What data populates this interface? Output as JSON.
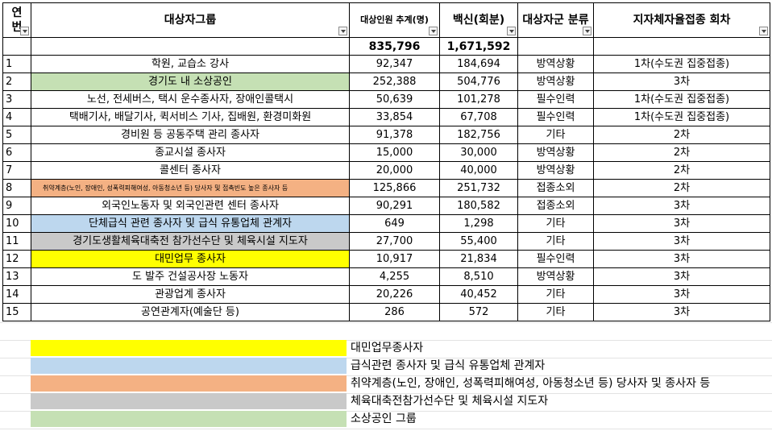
{
  "colors": {
    "yellow": "#ffff00",
    "light_blue": "#bdd7ee",
    "orange": "#f4b183",
    "gray": "#c9c9c9",
    "light_green": "#c5e0b4"
  },
  "header": {
    "no": "연번",
    "group": "대상자그룹",
    "est": "대상인원 추계(명)",
    "vaccine": "백신(회분)",
    "category": "대상자군 분류",
    "round": "지자체자율접종 회차"
  },
  "totals": {
    "est": "835,796",
    "vaccine": "1,671,592"
  },
  "rows": [
    {
      "no": "1",
      "group": "학원, 교습소 강사",
      "est": "92,347",
      "vaccine": "184,694",
      "category": "방역상황",
      "round": "1차(수도권 집중접종)",
      "color": ""
    },
    {
      "no": "2",
      "group": "경기도 내 소상공인",
      "est": "252,388",
      "vaccine": "504,776",
      "category": "방역상황",
      "round": "3차",
      "color": "light_green"
    },
    {
      "no": "3",
      "group": "노선, 전세버스, 택시 운수종사자, 장애인콜택시",
      "est": "50,639",
      "vaccine": "101,278",
      "category": "필수인력",
      "round": "1차(수도권 집중접종)",
      "color": ""
    },
    {
      "no": "4",
      "group": "택배기사, 배달기사, 퀵서비스 기사, 집배원, 환경미화원",
      "est": "33,854",
      "vaccine": "67,708",
      "category": "필수인력",
      "round": "1차(수도권 집중접종)",
      "color": ""
    },
    {
      "no": "5",
      "group": "경비원 등 공동주택 관리 종사자",
      "est": "91,378",
      "vaccine": "182,756",
      "category": "기타",
      "round": "2차",
      "color": ""
    },
    {
      "no": "6",
      "group": "종교시설 종사자",
      "est": "15,000",
      "vaccine": "30,000",
      "category": "방역상황",
      "round": "2차",
      "color": ""
    },
    {
      "no": "7",
      "group": "콜센터 종사자",
      "est": "20,000",
      "vaccine": "40,000",
      "category": "방역상황",
      "round": "2차",
      "color": ""
    },
    {
      "no": "8",
      "group": "취약계층(노인, 장애인, 성폭력피해여성, 아동청소년 등) 당사자 및 접촉빈도 높은 종사자 등",
      "est": "125,866",
      "vaccine": "251,732",
      "category": "접종소외",
      "round": "2차",
      "color": "orange"
    },
    {
      "no": "9",
      "group": "외국인노동자 및 외국인관련 센터 종사자",
      "est": "90,291",
      "vaccine": "180,582",
      "category": "접종소외",
      "round": "3차",
      "color": ""
    },
    {
      "no": "10",
      "group": "단체급식 관련 종사자 및 급식 유통업체 관계자",
      "est": "649",
      "vaccine": "1,298",
      "category": "기타",
      "round": "3차",
      "color": "light_blue"
    },
    {
      "no": "11",
      "group": "경기도생활체육대축전 참가선수단 및 체육시설 지도자",
      "est": "27,700",
      "vaccine": "55,400",
      "category": "기타",
      "round": "3차",
      "color": "gray"
    },
    {
      "no": "12",
      "group": "대민업무 종사자",
      "est": "10,917",
      "vaccine": "21,834",
      "category": "필수인력",
      "round": "3차",
      "color": "yellow"
    },
    {
      "no": "13",
      "group": "도 발주 건설공사장 노동자",
      "est": "4,255",
      "vaccine": "8,510",
      "category": "방역상황",
      "round": "3차",
      "color": ""
    },
    {
      "no": "14",
      "group": "관광업계 종사자",
      "est": "20,226",
      "vaccine": "40,452",
      "category": "기타",
      "round": "3차",
      "color": ""
    },
    {
      "no": "15",
      "group": "공연관계자(예술단 등)",
      "est": "286",
      "vaccine": "572",
      "category": "기타",
      "round": "3차",
      "color": ""
    }
  ],
  "legend": [
    {
      "color": "yellow",
      "label": "대민업무종사자"
    },
    {
      "color": "light_blue",
      "label": "급식관련 종사자 및 급식 유통업체 관계자"
    },
    {
      "color": "orange",
      "label": "취약계층(노인, 장애인, 성폭력피해여성, 아동청소년 등) 당사자 및 종사자 등"
    },
    {
      "color": "gray",
      "label": "체육대축전참가선수단 및 체육시설 지도자"
    },
    {
      "color": "light_green",
      "label": "소상공인 그룹"
    }
  ]
}
